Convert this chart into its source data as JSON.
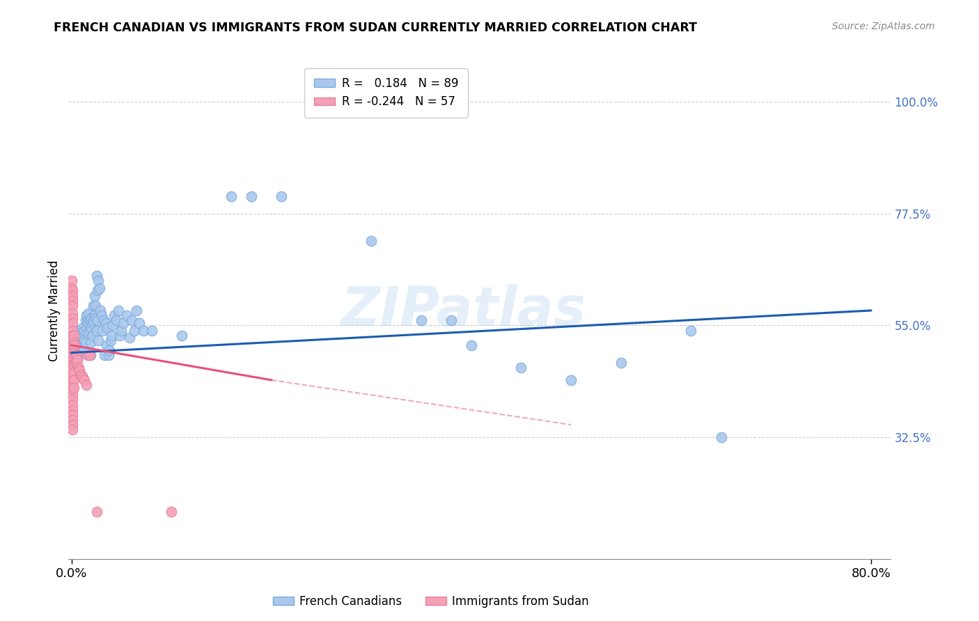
{
  "title": "FRENCH CANADIAN VS IMMIGRANTS FROM SUDAN CURRENTLY MARRIED CORRELATION CHART",
  "source": "Source: ZipAtlas.com",
  "ylabel": "Currently Married",
  "ytick_labels": [
    "100.0%",
    "77.5%",
    "55.0%",
    "32.5%"
  ],
  "ytick_values": [
    1.0,
    0.775,
    0.55,
    0.325
  ],
  "ylim": [
    0.08,
    1.08
  ],
  "xlim": [
    -0.003,
    0.82
  ],
  "watermark": "ZIPatlas",
  "blue_color": "#aac8ee",
  "pink_color": "#f4a0b5",
  "line_blue_color": "#1a5cb0",
  "line_pink_color": "#e8507a",
  "blue_line_start_x": 0.0,
  "blue_line_end_x": 0.8,
  "blue_line_start_y": 0.495,
  "blue_line_end_y": 0.58,
  "pink_line_start_x": 0.0,
  "pink_line_end_x": 0.2,
  "pink_line_start_y": 0.51,
  "pink_line_end_y": 0.44,
  "pink_line_dashed_end_x": 0.5,
  "pink_line_dashed_end_y": 0.35,
  "blue_scatter": [
    [
      0.001,
      0.515
    ],
    [
      0.001,
      0.51
    ],
    [
      0.002,
      0.52
    ],
    [
      0.002,
      0.505
    ],
    [
      0.003,
      0.515
    ],
    [
      0.003,
      0.495
    ],
    [
      0.004,
      0.53
    ],
    [
      0.004,
      0.51
    ],
    [
      0.005,
      0.525
    ],
    [
      0.005,
      0.5
    ],
    [
      0.006,
      0.54
    ],
    [
      0.006,
      0.505
    ],
    [
      0.007,
      0.52
    ],
    [
      0.007,
      0.535
    ],
    [
      0.008,
      0.515
    ],
    [
      0.008,
      0.49
    ],
    [
      0.009,
      0.525
    ],
    [
      0.009,
      0.5
    ],
    [
      0.01,
      0.53
    ],
    [
      0.01,
      0.51
    ],
    [
      0.011,
      0.545
    ],
    [
      0.012,
      0.5
    ],
    [
      0.013,
      0.52
    ],
    [
      0.013,
      0.54
    ],
    [
      0.014,
      0.515
    ],
    [
      0.014,
      0.56
    ],
    [
      0.015,
      0.57
    ],
    [
      0.015,
      0.545
    ],
    [
      0.016,
      0.56
    ],
    [
      0.016,
      0.535
    ],
    [
      0.017,
      0.575
    ],
    [
      0.017,
      0.555
    ],
    [
      0.018,
      0.56
    ],
    [
      0.018,
      0.54
    ],
    [
      0.019,
      0.49
    ],
    [
      0.019,
      0.515
    ],
    [
      0.02,
      0.565
    ],
    [
      0.02,
      0.545
    ],
    [
      0.021,
      0.555
    ],
    [
      0.021,
      0.53
    ],
    [
      0.022,
      0.59
    ],
    [
      0.022,
      0.56
    ],
    [
      0.023,
      0.57
    ],
    [
      0.023,
      0.61
    ],
    [
      0.024,
      0.565
    ],
    [
      0.024,
      0.59
    ],
    [
      0.025,
      0.65
    ],
    [
      0.025,
      0.54
    ],
    [
      0.026,
      0.62
    ],
    [
      0.026,
      0.56
    ],
    [
      0.027,
      0.64
    ],
    [
      0.027,
      0.52
    ],
    [
      0.028,
      0.625
    ],
    [
      0.029,
      0.58
    ],
    [
      0.03,
      0.57
    ],
    [
      0.031,
      0.54
    ],
    [
      0.032,
      0.56
    ],
    [
      0.033,
      0.49
    ],
    [
      0.034,
      0.555
    ],
    [
      0.035,
      0.51
    ],
    [
      0.036,
      0.545
    ],
    [
      0.037,
      0.49
    ],
    [
      0.038,
      0.5
    ],
    [
      0.039,
      0.52
    ],
    [
      0.04,
      0.53
    ],
    [
      0.041,
      0.55
    ],
    [
      0.043,
      0.57
    ],
    [
      0.045,
      0.56
    ],
    [
      0.047,
      0.58
    ],
    [
      0.048,
      0.53
    ],
    [
      0.05,
      0.54
    ],
    [
      0.052,
      0.555
    ],
    [
      0.055,
      0.57
    ],
    [
      0.058,
      0.525
    ],
    [
      0.06,
      0.56
    ],
    [
      0.063,
      0.54
    ],
    [
      0.065,
      0.58
    ],
    [
      0.068,
      0.555
    ],
    [
      0.072,
      0.54
    ],
    [
      0.08,
      0.54
    ],
    [
      0.11,
      0.53
    ],
    [
      0.16,
      0.81
    ],
    [
      0.18,
      0.81
    ],
    [
      0.21,
      0.81
    ],
    [
      0.3,
      0.72
    ],
    [
      0.35,
      0.56
    ],
    [
      0.38,
      0.56
    ],
    [
      0.4,
      0.51
    ],
    [
      0.45,
      0.465
    ],
    [
      0.5,
      0.44
    ],
    [
      0.55,
      0.475
    ],
    [
      0.62,
      0.54
    ],
    [
      0.65,
      0.325
    ]
  ],
  "pink_scatter": [
    [
      0.0,
      0.64
    ],
    [
      0.0,
      0.625
    ],
    [
      0.001,
      0.62
    ],
    [
      0.001,
      0.61
    ],
    [
      0.001,
      0.6
    ],
    [
      0.001,
      0.59
    ],
    [
      0.001,
      0.575
    ],
    [
      0.001,
      0.565
    ],
    [
      0.001,
      0.555
    ],
    [
      0.001,
      0.54
    ],
    [
      0.001,
      0.53
    ],
    [
      0.001,
      0.52
    ],
    [
      0.001,
      0.51
    ],
    [
      0.001,
      0.5
    ],
    [
      0.001,
      0.49
    ],
    [
      0.001,
      0.48
    ],
    [
      0.001,
      0.47
    ],
    [
      0.001,
      0.46
    ],
    [
      0.001,
      0.45
    ],
    [
      0.001,
      0.44
    ],
    [
      0.001,
      0.43
    ],
    [
      0.001,
      0.42
    ],
    [
      0.001,
      0.41
    ],
    [
      0.001,
      0.4
    ],
    [
      0.001,
      0.39
    ],
    [
      0.001,
      0.38
    ],
    [
      0.001,
      0.37
    ],
    [
      0.001,
      0.36
    ],
    [
      0.001,
      0.35
    ],
    [
      0.001,
      0.34
    ],
    [
      0.002,
      0.53
    ],
    [
      0.002,
      0.515
    ],
    [
      0.002,
      0.5
    ],
    [
      0.002,
      0.485
    ],
    [
      0.002,
      0.47
    ],
    [
      0.002,
      0.455
    ],
    [
      0.002,
      0.44
    ],
    [
      0.002,
      0.425
    ],
    [
      0.003,
      0.51
    ],
    [
      0.003,
      0.495
    ],
    [
      0.004,
      0.49
    ],
    [
      0.004,
      0.475
    ],
    [
      0.005,
      0.49
    ],
    [
      0.005,
      0.475
    ],
    [
      0.006,
      0.48
    ],
    [
      0.007,
      0.465
    ],
    [
      0.008,
      0.46
    ],
    [
      0.009,
      0.45
    ],
    [
      0.01,
      0.45
    ],
    [
      0.011,
      0.445
    ],
    [
      0.013,
      0.44
    ],
    [
      0.015,
      0.43
    ],
    [
      0.016,
      0.49
    ],
    [
      0.018,
      0.49
    ],
    [
      0.025,
      0.175
    ],
    [
      0.1,
      0.175
    ]
  ]
}
